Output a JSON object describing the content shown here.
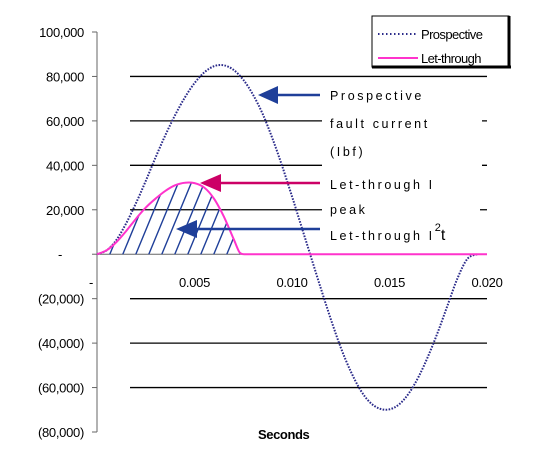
{
  "chart_data": {
    "type": "line",
    "xlabel": "Seconds",
    "ylabel": "",
    "xlim": [
      0,
      0.02
    ],
    "ylim": [
      -80000,
      100000
    ],
    "x_ticks": [
      "0.005",
      "0.010",
      "0.015",
      "0.020"
    ],
    "x_tick_values": [
      0.005,
      0.01,
      0.015,
      0.02
    ],
    "y_ticks": [
      "100,000",
      "80,000",
      "60,000",
      "40,000",
      "20,000",
      "-",
      "(20,000)",
      "(40,000)",
      "(60,000)",
      "(80,000)"
    ],
    "y_tick_values": [
      100000,
      80000,
      60000,
      40000,
      20000,
      0,
      -20000,
      -40000,
      -60000,
      -80000
    ],
    "grid": "horizontal",
    "legend_position": "top-right",
    "series": [
      {
        "name": "Prospective",
        "color": "#2b2b8a",
        "style": "dotted",
        "x": [
          0,
          0.0005,
          0.001,
          0.0015,
          0.002,
          0.0025,
          0.003,
          0.0035,
          0.004,
          0.0045,
          0.005,
          0.0055,
          0.006,
          0.0065,
          0.007,
          0.0075,
          0.008,
          0.0085,
          0.009,
          0.0095,
          0.01,
          0.0105,
          0.011,
          0.0115,
          0.012,
          0.0125,
          0.013,
          0.0135,
          0.014,
          0.0145,
          0.015,
          0.0155,
          0.016,
          0.0165,
          0.017,
          0.0175,
          0.018,
          0.0185,
          0.019,
          0.0195
        ],
        "values": [
          0,
          1800,
          6500,
          14000,
          23000,
          33000,
          43500,
          53500,
          62500,
          70500,
          77000,
          81800,
          84600,
          85000,
          83000,
          78500,
          71800,
          63000,
          52000,
          39500,
          26000,
          12000,
          -2000,
          -16000,
          -29500,
          -42000,
          -52500,
          -61000,
          -66700,
          -69500,
          -69800,
          -67500,
          -62500,
          -55000,
          -45500,
          -34500,
          -22500,
          -10500,
          -2000,
          0
        ]
      },
      {
        "name": "Let-through",
        "color": "#ff33cc",
        "style": "solid",
        "x": [
          0,
          0.0005,
          0.001,
          0.0015,
          0.002,
          0.0025,
          0.003,
          0.0035,
          0.004,
          0.0045,
          0.005,
          0.0055,
          0.006,
          0.0065,
          0.007,
          0.0073,
          0.0075,
          0.01,
          0.015,
          0.02
        ],
        "values": [
          0,
          1800,
          5500,
          10500,
          16000,
          21000,
          25000,
          28500,
          31000,
          32200,
          32000,
          30000,
          25000,
          17000,
          7000,
          1000,
          0,
          0,
          0,
          0
        ]
      }
    ],
    "annotations": [
      {
        "lines": [
          "Prospective",
          "fault current",
          "(Ibf)"
        ]
      },
      {
        "lines": [
          "Let-through I",
          "peak"
        ]
      },
      {
        "text": "Let-through I",
        "superscript": "2",
        "suffix": "t"
      }
    ],
    "colors": {
      "arrow_blue": "#1f3f99",
      "arrow_magenta": "#cc0066",
      "hatch": "#1f3f99"
    }
  }
}
